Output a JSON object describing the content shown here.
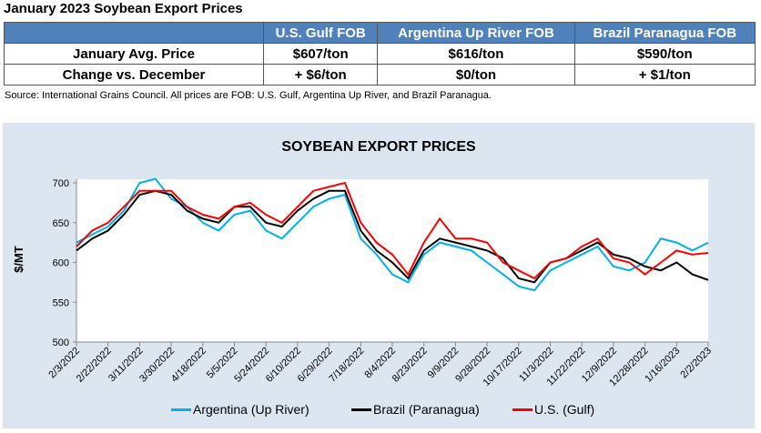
{
  "table": {
    "title": "January 2023 Soybean Export Prices",
    "headers": [
      "",
      "U.S. Gulf FOB",
      "Argentina Up River FOB",
      "Brazil Paranagua FOB"
    ],
    "rows": [
      [
        "January Avg. Price",
        "$607/ton",
        "$616/ton",
        "$590/ton"
      ],
      [
        "Change vs. December",
        "+ $6/ton",
        "$0/ton",
        "+ $1/ton"
      ]
    ],
    "source": "Source: International Grains Council. All prices are FOB: U.S. Gulf, Argentina Up River, and Brazil Paranagua."
  },
  "chart_data": {
    "type": "line",
    "title": "SOYBEAN EXPORT PRICES",
    "ylabel": "$/MT",
    "xlabel": "",
    "ylim": [
      500,
      700
    ],
    "yticks": [
      500,
      550,
      600,
      650,
      700
    ],
    "grid": false,
    "legend": "bottom",
    "xtick_labels": [
      "2/3/2022",
      "2/22/2022",
      "3/11/2022",
      "3/30/2022",
      "4/18/2022",
      "5/5/2022",
      "5/24/2022",
      "6/10/2022",
      "6/29/2022",
      "7/18/2022",
      "8/4/2022",
      "8/23/2022",
      "9/9/2022",
      "9/28/2022",
      "10/17/2022",
      "11/3/2022",
      "11/22/2022",
      "12/9/2022",
      "12/28/2022",
      "1/16/2023",
      "2/2/2023"
    ],
    "series": [
      {
        "name": "Argentina (Up River)",
        "color": "#00b0f0",
        "values": [
          625,
          635,
          645,
          665,
          700,
          705,
          680,
          670,
          650,
          640,
          660,
          665,
          640,
          630,
          650,
          670,
          680,
          685,
          630,
          610,
          585,
          575,
          610,
          625,
          620,
          615,
          600,
          585,
          570,
          565,
          590,
          600,
          610,
          620,
          595,
          590,
          600,
          630,
          625,
          615,
          625
        ]
      },
      {
        "name": "Brazil (Paranagua)",
        "color": "#000000",
        "values": [
          615,
          630,
          640,
          660,
          685,
          690,
          685,
          665,
          655,
          650,
          670,
          670,
          650,
          645,
          665,
          680,
          690,
          690,
          640,
          615,
          600,
          580,
          615,
          630,
          625,
          620,
          615,
          605,
          580,
          575,
          600,
          605,
          615,
          625,
          610,
          605,
          595,
          590,
          600,
          585,
          578
        ]
      },
      {
        "name": "U.S. (Gulf)",
        "color": "#ff0000",
        "values": [
          620,
          640,
          650,
          670,
          690,
          690,
          690,
          670,
          660,
          655,
          670,
          675,
          660,
          650,
          670,
          690,
          695,
          700,
          650,
          625,
          610,
          585,
          625,
          655,
          630,
          630,
          625,
          600,
          590,
          580,
          600,
          605,
          620,
          630,
          605,
          600,
          585,
          600,
          615,
          610,
          612
        ]
      }
    ]
  }
}
